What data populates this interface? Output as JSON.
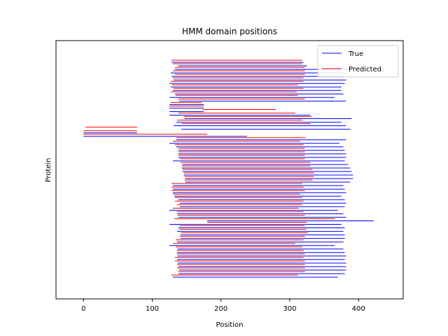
{
  "chart_data": {
    "type": "line",
    "title": "HMM domain positions",
    "xlabel": "Position",
    "ylabel": "Protein",
    "xlim": [
      -40,
      465
    ],
    "xticks": [
      0,
      100,
      200,
      300,
      400
    ],
    "grid": false,
    "legend_position": "top-right",
    "series": [
      {
        "name": "True",
        "color": "#0000ff",
        "segments": [
          [
            130,
            370
          ],
          [
            138,
            380
          ],
          [
            139,
            382
          ],
          [
            138,
            382
          ],
          [
            137,
            382
          ],
          [
            136,
            380
          ],
          [
            137,
            382
          ],
          [
            136,
            380
          ],
          [
            137,
            378
          ],
          [
            125,
            365
          ],
          [
            136,
            378
          ],
          [
            141,
            380
          ],
          [
            141,
            380
          ],
          [
            136,
            378
          ],
          [
            138,
            380
          ],
          [
            125,
            375
          ],
          [
            180,
            422
          ],
          [
            138,
            382
          ],
          [
            136,
            378
          ],
          [
            125,
            370
          ],
          [
            140,
            380
          ],
          [
            140,
            382
          ],
          [
            138,
            380
          ],
          [
            132,
            375
          ],
          [
            130,
            382
          ],
          [
            130,
            380
          ],
          [
            130,
            378
          ],
          [
            148,
            388
          ],
          [
            148,
            392
          ],
          [
            146,
            392
          ],
          [
            144,
            390
          ],
          [
            143,
            388
          ],
          [
            144,
            385
          ],
          [
            130,
            380
          ],
          [
            138,
            382
          ],
          [
            138,
            382
          ],
          [
            138,
            380
          ],
          [
            135,
            378
          ],
          [
            125,
            372
          ],
          [
            135,
            382
          ],
          [
            0,
            238
          ],
          [
            0,
            78
          ],
          [
            142,
            388
          ],
          [
            131,
            382
          ],
          [
            135,
            375
          ],
          [
            147,
            390
          ],
          [
            125,
            330
          ],
          [
            125,
            175
          ],
          [
            125,
            175
          ],
          [
            125,
            175
          ],
          [
            139,
            382
          ],
          [
            125,
            365
          ],
          [
            133,
            378
          ],
          [
            130,
            375
          ],
          [
            127,
            375
          ],
          [
            125,
            380
          ],
          [
            131,
            382
          ],
          [
            128,
            378
          ],
          [
            127,
            380
          ],
          [
            133,
            385
          ],
          [
            138,
            325
          ],
          [
            128,
            320
          ]
        ]
      },
      {
        "name": "Predicted",
        "color": "#ff0000",
        "segments": [
          [
            128,
            312
          ],
          [
            138,
            322
          ],
          [
            136,
            322
          ],
          [
            136,
            322
          ],
          [
            133,
            322
          ],
          [
            133,
            320
          ],
          [
            136,
            322
          ],
          [
            136,
            320
          ],
          [
            134,
            318
          ],
          [
            130,
            308
          ],
          [
            134,
            320
          ],
          [
            140,
            322
          ],
          [
            142,
            326
          ],
          [
            140,
            324
          ],
          [
            140,
            322
          ],
          [
            180,
            325
          ],
          [
            132,
            365
          ],
          [
            137,
            322
          ],
          [
            136,
            320
          ],
          [
            130,
            313
          ],
          [
            136,
            318
          ],
          [
            133,
            320
          ],
          [
            133,
            318
          ],
          [
            130,
            315
          ],
          [
            128,
            322
          ],
          [
            128,
            320
          ],
          [
            128,
            318
          ],
          [
            147,
            333
          ],
          [
            147,
            335
          ],
          [
            146,
            335
          ],
          [
            144,
            333
          ],
          [
            143,
            330
          ],
          [
            141,
            330
          ],
          [
            140,
            322
          ],
          [
            138,
            322
          ],
          [
            138,
            322
          ],
          [
            138,
            322
          ],
          [
            133,
            320
          ],
          [
            130,
            315
          ],
          [
            135,
            323
          ],
          [
            0,
            180
          ],
          [
            0,
            78
          ],
          [
            3,
            78
          ],
          [
            143,
            330
          ],
          [
            136,
            318
          ],
          [
            146,
            332
          ],
          [
            138,
            308
          ],
          [
            173,
            280
          ],
          [
            125,
            175
          ],
          [
            127,
            172
          ],
          [
            138,
            322
          ],
          [
            134,
            312
          ],
          [
            127,
            310
          ],
          [
            131,
            320
          ],
          [
            129,
            312
          ],
          [
            127,
            320
          ],
          [
            130,
            320
          ],
          [
            133,
            322
          ],
          [
            130,
            322
          ],
          [
            133,
            322
          ],
          [
            130,
            318
          ],
          [
            128,
            318
          ]
        ]
      }
    ]
  }
}
